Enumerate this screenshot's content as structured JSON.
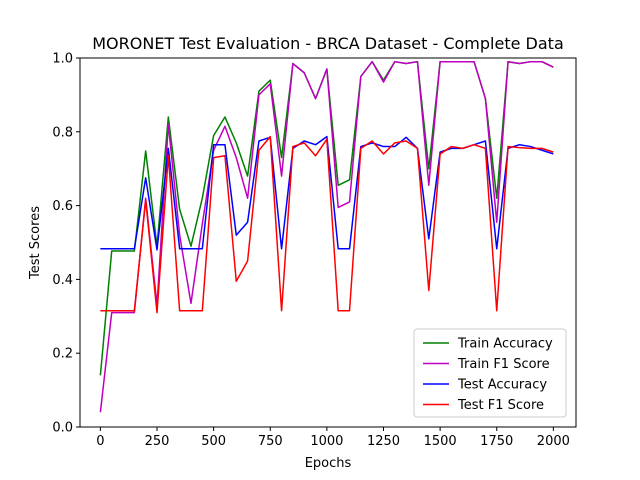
{
  "chart_data": {
    "type": "line",
    "title": "MORONET Test Evaluation - BRCA Dataset - Complete Data",
    "xlabel": "Epochs",
    "ylabel": "Test Scores",
    "xlim": [
      -90,
      2100
    ],
    "ylim": [
      0.0,
      1.0
    ],
    "xticks": [
      0,
      250,
      500,
      750,
      1000,
      1250,
      1500,
      1750,
      2000
    ],
    "yticks": [
      0.0,
      0.2,
      0.4,
      0.6,
      0.8,
      1.0
    ],
    "grid": false,
    "legend_position": "lower-right",
    "x": [
      0,
      50,
      100,
      150,
      200,
      250,
      300,
      350,
      400,
      450,
      500,
      550,
      600,
      650,
      700,
      750,
      800,
      850,
      900,
      950,
      1000,
      1050,
      1100,
      1150,
      1200,
      1250,
      1300,
      1350,
      1400,
      1450,
      1500,
      1550,
      1600,
      1650,
      1700,
      1750,
      1800,
      1850,
      1900,
      1950,
      2000
    ],
    "series": [
      {
        "name": "Train Accuracy",
        "color": "#008000",
        "values": [
          0.14,
          0.477,
          0.477,
          0.477,
          0.748,
          0.49,
          0.84,
          0.59,
          0.49,
          0.62,
          0.79,
          0.84,
          0.77,
          0.68,
          0.91,
          0.94,
          0.73,
          0.985,
          0.96,
          0.89,
          0.97,
          0.655,
          0.67,
          0.95,
          0.99,
          0.94,
          0.99,
          0.985,
          0.99,
          0.7,
          0.99,
          0.99,
          0.99,
          0.99,
          0.89,
          0.62,
          0.99,
          0.985,
          0.99,
          0.99,
          0.975
        ]
      },
      {
        "name": "Train F1 Score",
        "color": "#bf00bf",
        "values": [
          0.04,
          0.31,
          0.31,
          0.31,
          0.62,
          0.33,
          0.82,
          0.52,
          0.335,
          0.55,
          0.75,
          0.815,
          0.73,
          0.62,
          0.9,
          0.93,
          0.68,
          0.985,
          0.96,
          0.89,
          0.97,
          0.595,
          0.61,
          0.95,
          0.99,
          0.935,
          0.99,
          0.985,
          0.99,
          0.655,
          0.99,
          0.99,
          0.99,
          0.99,
          0.89,
          0.555,
          0.99,
          0.985,
          0.99,
          0.99,
          0.975
        ]
      },
      {
        "name": "Test Accuracy",
        "color": "#0000ff",
        "values": [
          0.483,
          0.483,
          0.483,
          0.483,
          0.675,
          0.48,
          0.755,
          0.483,
          0.483,
          0.483,
          0.765,
          0.765,
          0.52,
          0.555,
          0.775,
          0.785,
          0.483,
          0.755,
          0.775,
          0.765,
          0.787,
          0.483,
          0.483,
          0.76,
          0.77,
          0.76,
          0.76,
          0.785,
          0.755,
          0.51,
          0.745,
          0.755,
          0.755,
          0.765,
          0.775,
          0.483,
          0.755,
          0.765,
          0.76,
          0.75,
          0.74
        ]
      },
      {
        "name": "Test F1 Score",
        "color": "#ff0000",
        "values": [
          0.315,
          0.315,
          0.315,
          0.315,
          0.615,
          0.31,
          0.735,
          0.315,
          0.315,
          0.315,
          0.73,
          0.735,
          0.395,
          0.45,
          0.75,
          0.787,
          0.315,
          0.76,
          0.77,
          0.735,
          0.78,
          0.315,
          0.315,
          0.755,
          0.775,
          0.74,
          0.77,
          0.775,
          0.755,
          0.37,
          0.74,
          0.76,
          0.755,
          0.765,
          0.755,
          0.315,
          0.76,
          0.757,
          0.755,
          0.755,
          0.745
        ]
      }
    ]
  }
}
